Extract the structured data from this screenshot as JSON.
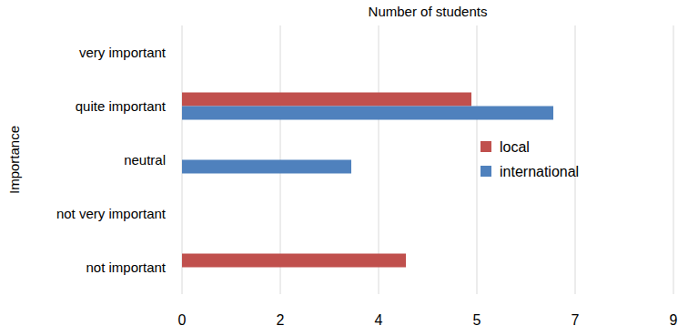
{
  "chart_data": {
    "type": "bar",
    "orientation": "horizontal",
    "title": "Number of students",
    "y_label": "Importance",
    "categories": [
      "very important",
      "quite important",
      "neutral",
      "not very important",
      "not important"
    ],
    "series": [
      {
        "name": "local",
        "color": "#c0504d",
        "values": [
          0,
          5.3,
          0,
          0,
          4.1
        ]
      },
      {
        "name": "international",
        "color": "#4f81bd",
        "values": [
          0,
          6.8,
          3.1,
          0,
          0
        ]
      }
    ],
    "xlim": [
      0,
      9
    ],
    "xticks": [
      0,
      {
        "value": 1.8,
        "label": "2"
      },
      {
        "value": 3.6,
        "label": "4"
      },
      {
        "value": 5.4,
        "label": "5"
      },
      {
        "value": 7.2,
        "label": "7"
      },
      9
    ],
    "grid": true,
    "legend": "right"
  }
}
